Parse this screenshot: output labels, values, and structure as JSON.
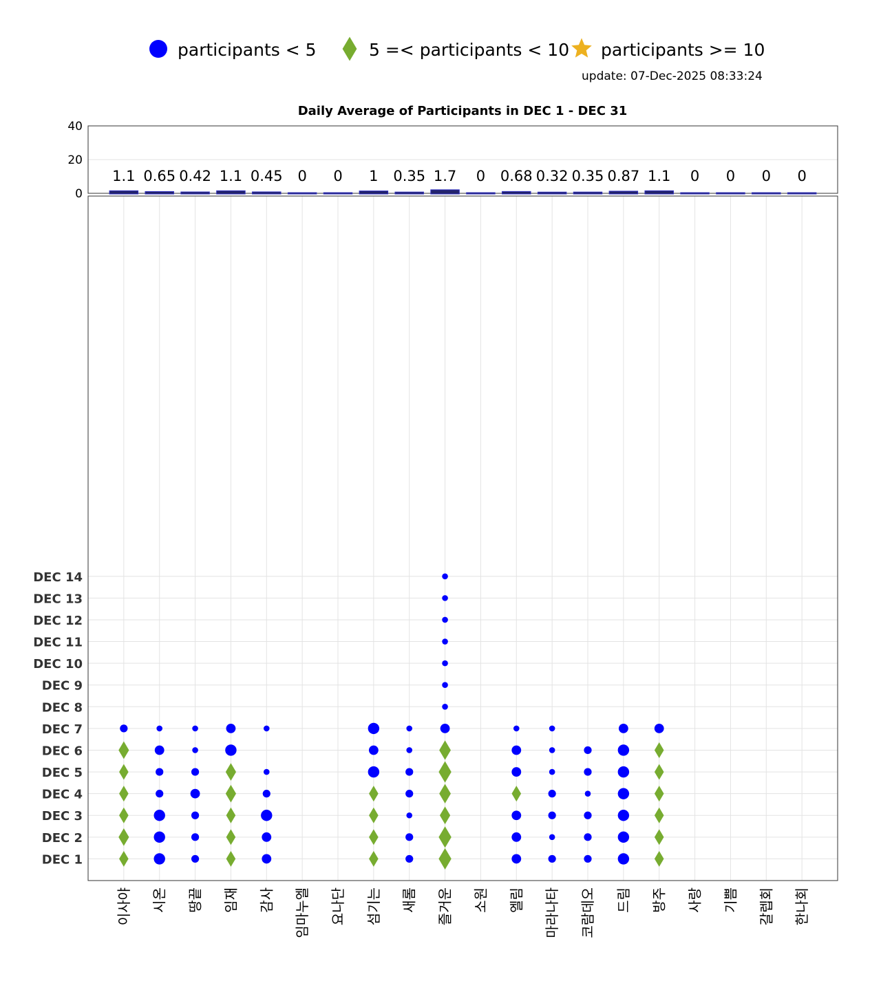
{
  "update": "update: 07-Dec-2025 08:33:24",
  "chart_data": [
    {
      "type": "bar",
      "title": "Daily Average of Participants in DEC 1 - DEC 31",
      "categories": [
        "이사야",
        "시온",
        "땅끝",
        "임재",
        "감사",
        "임마누엘",
        "요나단",
        "섬기는",
        "새롬",
        "즐거운",
        "소원",
        "엘림",
        "마라나타",
        "코람데오",
        "드림",
        "방주",
        "사랑",
        "기쁨",
        "갈렙회",
        "한나회"
      ],
      "values": [
        1.1,
        0.65,
        0.42,
        1.1,
        0.45,
        0,
        0,
        1,
        0.35,
        1.7,
        0,
        0.68,
        0.32,
        0.35,
        0.87,
        1.1,
        0,
        0,
        0,
        0
      ],
      "color": "#23236b",
      "ylim": [
        0,
        40
      ],
      "yticks": [
        0,
        20,
        40
      ],
      "grid": true
    },
    {
      "type": "scatter",
      "legend": [
        {
          "name": "participants < 5",
          "color": "#0000ff",
          "marker": "circle"
        },
        {
          "name": "5 =< participants < 10",
          "color": "#77ac30",
          "marker": "diamond"
        },
        {
          "name": "participants >= 10",
          "color": "#edb120",
          "marker": "star"
        }
      ],
      "marker_bounds": [
        5,
        10
      ],
      "categories": [
        "이사야",
        "시온",
        "땅끝",
        "임재",
        "감사",
        "임마누엘",
        "요나단",
        "섬기는",
        "새롬",
        "즐거운",
        "소원",
        "엘림",
        "마라나타",
        "코람데오",
        "드림",
        "방주",
        "사랑",
        "기쁨",
        "갈렙회",
        "한나회"
      ],
      "ylim": [
        0,
        31.5
      ],
      "yticks": [
        {
          "value": 1,
          "label": "DEC 1"
        },
        {
          "value": 2,
          "label": "DEC 2"
        },
        {
          "value": 3,
          "label": "DEC 3"
        },
        {
          "value": 4,
          "label": "DEC 4"
        },
        {
          "value": 5,
          "label": "DEC 5"
        },
        {
          "value": 6,
          "label": "DEC 6"
        },
        {
          "value": 7,
          "label": "DEC 7"
        },
        {
          "value": 8,
          "label": "DEC 8"
        },
        {
          "value": 9,
          "label": "DEC 9"
        },
        {
          "value": 10,
          "label": "DEC 10"
        },
        {
          "value": 11,
          "label": "DEC 11"
        },
        {
          "value": 12,
          "label": "DEC 12"
        },
        {
          "value": 13,
          "label": "DEC 13"
        },
        {
          "value": 14,
          "label": "DEC 14"
        }
      ],
      "grid": true,
      "values": [
        [
          5,
          6,
          5,
          5,
          5,
          6,
          2,
          null,
          null,
          null,
          null,
          null,
          null,
          null
        ],
        [
          4,
          4,
          4,
          2,
          2,
          3,
          1,
          null,
          null,
          null,
          null,
          null,
          null,
          null
        ],
        [
          2,
          2,
          2,
          3,
          2,
          1,
          1,
          null,
          null,
          null,
          null,
          null,
          null,
          null
        ],
        [
          5,
          5,
          5,
          6,
          6,
          4,
          3,
          null,
          null,
          null,
          null,
          null,
          null,
          null
        ],
        [
          3,
          3,
          4,
          2,
          1,
          null,
          1,
          null,
          null,
          null,
          null,
          null,
          null,
          null
        ],
        [
          null,
          null,
          null,
          null,
          null,
          null,
          null,
          null,
          null,
          null,
          null,
          null,
          null,
          null
        ],
        [
          null,
          null,
          null,
          null,
          null,
          null,
          null,
          null,
          null,
          null,
          null,
          null,
          null,
          null
        ],
        [
          5,
          5,
          5,
          5,
          4,
          3,
          4,
          null,
          null,
          null,
          null,
          null,
          null,
          null
        ],
        [
          2,
          2,
          1,
          2,
          2,
          1,
          1,
          null,
          null,
          null,
          null,
          null,
          null,
          null
        ],
        [
          8,
          8,
          6,
          7,
          8,
          7,
          3,
          1,
          1,
          1,
          1,
          1,
          1,
          1
        ],
        [
          null,
          null,
          null,
          null,
          null,
          null,
          null,
          null,
          null,
          null,
          null,
          null,
          null,
          null
        ],
        [
          3,
          3,
          3,
          5,
          3,
          3,
          1,
          null,
          null,
          null,
          null,
          null,
          null,
          null
        ],
        [
          2,
          1,
          2,
          2,
          1,
          1,
          1,
          null,
          null,
          null,
          null,
          null,
          null,
          null
        ],
        [
          2,
          2,
          2,
          1,
          2,
          2,
          null,
          null,
          null,
          null,
          null,
          null,
          null,
          null
        ],
        [
          4,
          4,
          4,
          4,
          4,
          4,
          3,
          null,
          null,
          null,
          null,
          null,
          null,
          null
        ],
        [
          5,
          5,
          5,
          5,
          5,
          5,
          3,
          null,
          null,
          null,
          null,
          null,
          null,
          null
        ],
        [
          null,
          null,
          null,
          null,
          null,
          null,
          null,
          null,
          null,
          null,
          null,
          null,
          null,
          null
        ],
        [
          null,
          null,
          null,
          null,
          null,
          null,
          null,
          null,
          null,
          null,
          null,
          null,
          null,
          null
        ],
        [
          null,
          null,
          null,
          null,
          null,
          null,
          null,
          null,
          null,
          null,
          null,
          null,
          null,
          null
        ],
        [
          null,
          null,
          null,
          null,
          null,
          null,
          null,
          null,
          null,
          null,
          null,
          null,
          null,
          null
        ]
      ]
    }
  ]
}
